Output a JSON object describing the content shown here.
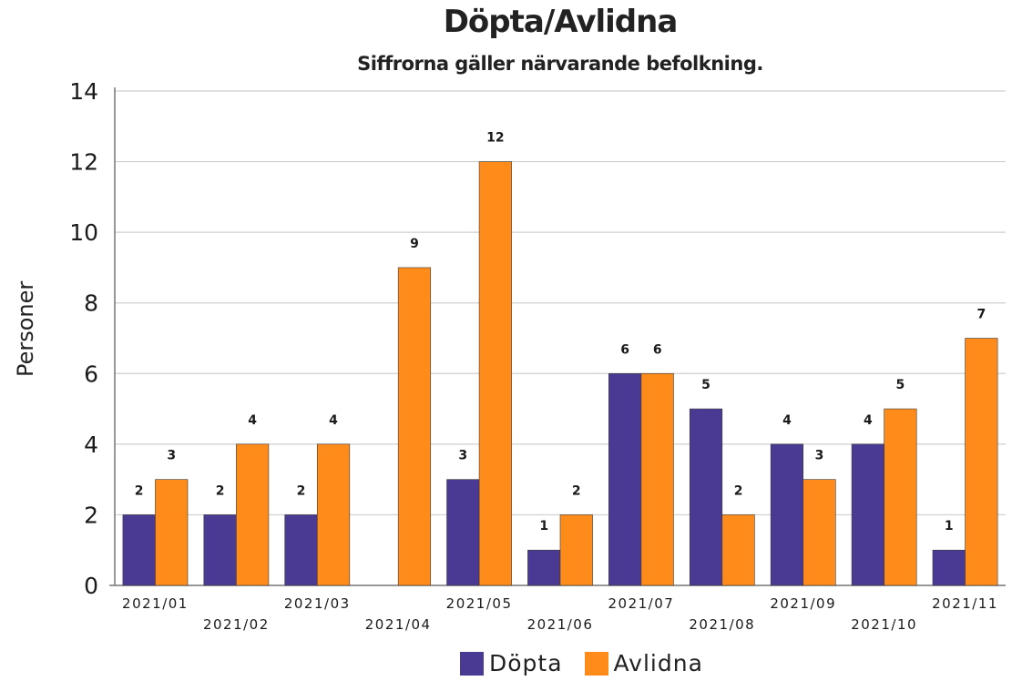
{
  "chart_data": {
    "type": "bar",
    "title": "Döpta/Avlidna",
    "subtitle": "Siffrorna gäller närvarande befolkning.",
    "ylabel": "Personer",
    "xlabel": "",
    "ylim": [
      0,
      14
    ],
    "yticks": [
      0,
      2,
      4,
      6,
      8,
      10,
      12,
      14
    ],
    "grid": true,
    "legend_position": "bottom",
    "categories": [
      "2021/01",
      "2021/02",
      "2021/03",
      "2021/04",
      "2021/05",
      "2021/06",
      "2021/07",
      "2021/08",
      "2021/09",
      "2021/10",
      "2021/11"
    ],
    "series": [
      {
        "name": "Döpta",
        "color": "#4b3a94",
        "values": [
          2,
          2,
          2,
          null,
          3,
          1,
          6,
          5,
          4,
          4,
          1
        ]
      },
      {
        "name": "Avlidna",
        "color": "#ff8c1a",
        "values": [
          3,
          4,
          4,
          9,
          12,
          2,
          6,
          2,
          3,
          5,
          7
        ]
      }
    ]
  }
}
